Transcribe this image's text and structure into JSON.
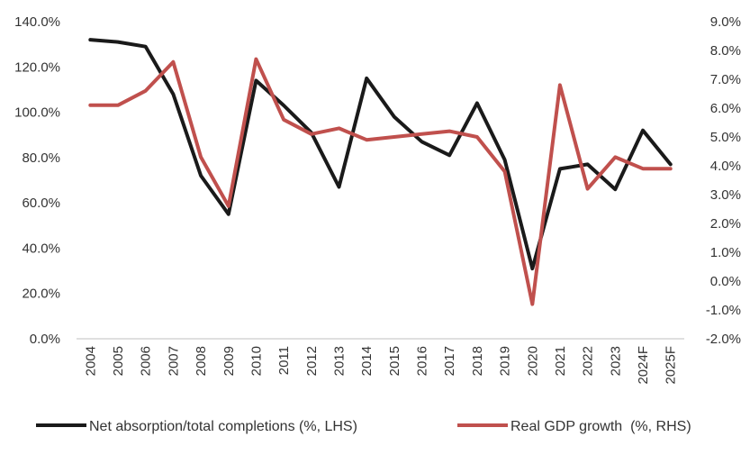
{
  "chart_data": {
    "type": "line",
    "categories": [
      "2004",
      "2005",
      "2006",
      "2007",
      "2008",
      "2009",
      "2010",
      "2011",
      "2012",
      "2013",
      "2014",
      "2015",
      "2016",
      "2017",
      "2018",
      "2019",
      "2020",
      "2021",
      "2022",
      "2023",
      "2024F",
      "2025F"
    ],
    "y_left": {
      "range": [
        0,
        140
      ],
      "ticks": [
        "0.0%",
        "20.0%",
        "40.0%",
        "60.0%",
        "80.0%",
        "100.0%",
        "120.0%",
        "140.0%"
      ]
    },
    "y_right": {
      "range": [
        -2,
        9
      ],
      "ticks": [
        "-2.0%",
        "-1.0%",
        "0.0%",
        "1.0%",
        "2.0%",
        "3.0%",
        "4.0%",
        "5.0%",
        "6.0%",
        "7.0%",
        "8.0%",
        "9.0%"
      ]
    },
    "grid": false,
    "legend_position": "bottom",
    "series": [
      {
        "name": "Net absorption/total completions (%, LHS)",
        "axis": "left",
        "color": "#1a1a1a",
        "values": [
          132,
          131,
          129,
          108,
          72,
          55,
          114,
          103,
          91,
          67,
          115,
          98,
          87,
          81,
          104,
          79,
          31,
          75,
          77,
          66,
          92,
          77
        ]
      },
      {
        "name": "Real GDP growth  (%, RHS)",
        "axis": "right",
        "color": "#c0504d",
        "values": [
          6.1,
          6.1,
          6.6,
          7.6,
          4.3,
          2.6,
          7.7,
          5.6,
          5.1,
          5.3,
          4.9,
          5.0,
          5.1,
          5.2,
          5.0,
          3.8,
          -0.8,
          6.8,
          3.2,
          4.3,
          3.9,
          3.9
        ]
      }
    ]
  }
}
